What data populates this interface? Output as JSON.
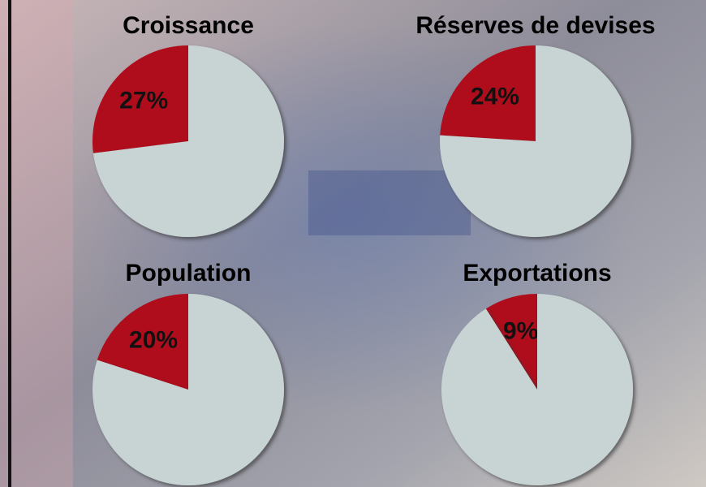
{
  "chart_data": [
    {
      "type": "pie",
      "title": "Croissance",
      "values": [
        27,
        73
      ],
      "value_labels": [
        "27%",
        null
      ],
      "colors": [
        "#b0101c",
        "#c8d4d4"
      ]
    },
    {
      "type": "pie",
      "title": "Réserves de devises",
      "values": [
        24,
        76
      ],
      "value_labels": [
        "24%",
        null
      ],
      "colors": [
        "#b0101c",
        "#c8d4d4"
      ]
    },
    {
      "type": "pie",
      "title": "Population",
      "values": [
        20,
        80
      ],
      "value_labels": [
        "20%",
        null
      ],
      "colors": [
        "#b0101c",
        "#c8d4d4"
      ]
    },
    {
      "type": "pie",
      "title": "Exportations",
      "values": [
        9,
        91
      ],
      "value_labels": [
        "9%",
        null
      ],
      "colors": [
        "#b0101c",
        "#c8d4d4"
      ]
    }
  ]
}
